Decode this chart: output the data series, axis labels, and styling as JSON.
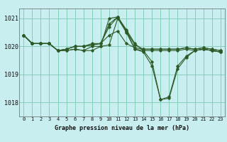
{
  "title": "Graphe pression niveau de la mer (hPa)",
  "bg_color": "#c8eef0",
  "grid_color": "#88ccbb",
  "line_color": "#2d5a27",
  "xlim": [
    -0.5,
    23.5
  ],
  "ylim": [
    1017.5,
    1021.35
  ],
  "yticks": [
    1018,
    1019,
    1020,
    1021
  ],
  "xticks": [
    0,
    1,
    2,
    3,
    4,
    5,
    6,
    7,
    8,
    9,
    10,
    11,
    12,
    13,
    14,
    15,
    16,
    17,
    18,
    19,
    20,
    21,
    22,
    23
  ],
  "series": [
    [
      1020.4,
      1020.1,
      1020.1,
      1020.1,
      1019.85,
      1019.85,
      1019.9,
      1019.85,
      1019.85,
      1020.0,
      1020.05,
      1021.0,
      1020.5,
      1019.9,
      1019.85,
      1019.85,
      1019.85,
      1019.85,
      1019.85,
      1019.9,
      1019.85,
      1019.9,
      1019.85,
      1019.8
    ],
    [
      1020.4,
      1020.1,
      1020.1,
      1020.1,
      1019.85,
      1019.9,
      1020.0,
      1020.0,
      1020.05,
      1020.1,
      1020.4,
      1020.55,
      1020.1,
      1019.95,
      1019.9,
      1019.9,
      1019.9,
      1019.9,
      1019.9,
      1019.95,
      1019.9,
      1019.95,
      1019.9,
      1019.85
    ],
    [
      1020.4,
      1020.1,
      1020.1,
      1020.1,
      1019.85,
      1019.9,
      1020.0,
      1020.0,
      1020.05,
      1020.1,
      1020.7,
      1021.05,
      1020.55,
      1020.05,
      1019.9,
      1019.9,
      1019.9,
      1019.9,
      1019.9,
      1019.95,
      1019.9,
      1019.95,
      1019.9,
      1019.85
    ],
    [
      1020.4,
      1020.1,
      1020.1,
      1020.1,
      1019.85,
      1019.9,
      1020.0,
      1020.0,
      1020.1,
      1020.1,
      1020.8,
      1021.05,
      1020.6,
      1020.1,
      1019.85,
      1019.45,
      1018.1,
      1018.15,
      1019.2,
      1019.6,
      1019.85,
      1019.9,
      1019.85,
      1019.8
    ],
    [
      1020.4,
      1020.1,
      1020.1,
      1020.1,
      1019.85,
      1019.85,
      1019.9,
      1019.85,
      1020.0,
      1020.0,
      1021.0,
      1021.05,
      1020.55,
      1019.9,
      1019.8,
      1019.3,
      1018.1,
      1018.2,
      1019.3,
      1019.65,
      1019.85,
      1019.9,
      1019.85,
      1019.8
    ]
  ]
}
